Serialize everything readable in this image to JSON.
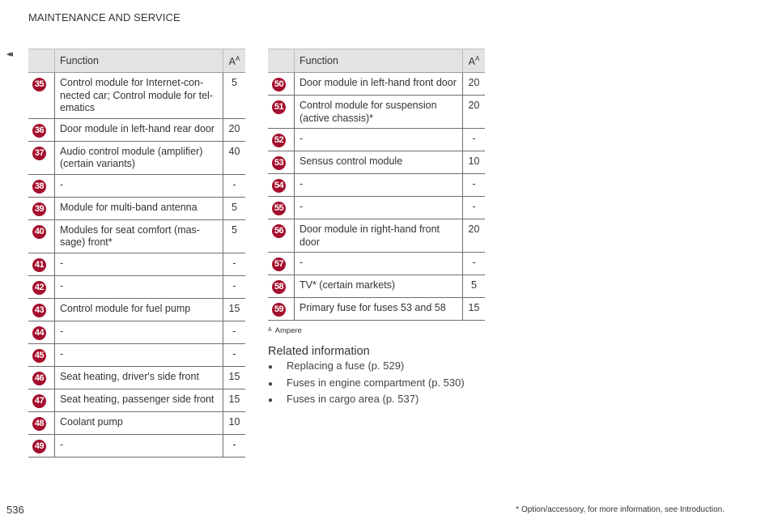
{
  "header": {
    "section": "MAINTENANCE AND SERVICE",
    "back_glyph": "◂◂"
  },
  "table_left": {
    "columns": {
      "function": "Function",
      "amp": "A",
      "amp_sup": "A"
    },
    "rows": [
      {
        "n": "35",
        "function": "Control module for Internet-con-\nnected car; Control module for tel-\nematics",
        "amp": "5"
      },
      {
        "n": "36",
        "function": "Door module in left-hand rear door",
        "amp": "20"
      },
      {
        "n": "37",
        "function": "Audio control module (amplifier)\n(certain variants)",
        "amp": "40"
      },
      {
        "n": "38",
        "function": "-",
        "amp": "-"
      },
      {
        "n": "39",
        "function": "Module for multi-band antenna",
        "amp": "5"
      },
      {
        "n": "40",
        "function": "Modules for seat comfort (mas-\nsage) front*",
        "amp": "5"
      },
      {
        "n": "41",
        "function": "-",
        "amp": "-"
      },
      {
        "n": "42",
        "function": "-",
        "amp": "-"
      },
      {
        "n": "43",
        "function": "Control module for fuel pump",
        "amp": "15"
      },
      {
        "n": "44",
        "function": "-",
        "amp": "-"
      },
      {
        "n": "45",
        "function": "-",
        "amp": "-"
      },
      {
        "n": "46",
        "function": "Seat heating, driver's side front",
        "amp": "15"
      },
      {
        "n": "47",
        "function": "Seat heating, passenger side front",
        "amp": "15"
      },
      {
        "n": "48",
        "function": "Coolant pump",
        "amp": "10"
      },
      {
        "n": "49",
        "function": "-",
        "amp": "-"
      }
    ]
  },
  "table_right": {
    "columns": {
      "function": "Function",
      "amp": "A",
      "amp_sup": "A"
    },
    "rows": [
      {
        "n": "50",
        "function": "Door module in left-hand front door",
        "amp": "20"
      },
      {
        "n": "51",
        "function": "Control module for suspension\n(active chassis)*",
        "amp": "20"
      },
      {
        "n": "52",
        "function": "-",
        "amp": "-"
      },
      {
        "n": "53",
        "function": "Sensus control module",
        "amp": "10"
      },
      {
        "n": "54",
        "function": "-",
        "amp": "-"
      },
      {
        "n": "55",
        "function": "-",
        "amp": "-"
      },
      {
        "n": "56",
        "function": "Door module in right-hand front\ndoor",
        "amp": "20"
      },
      {
        "n": "57",
        "function": "-",
        "amp": "-"
      },
      {
        "n": "58",
        "function": "TV* (certain markets)",
        "amp": "5"
      },
      {
        "n": "59",
        "function": "Primary fuse for fuses 53 and 58",
        "amp": "15"
      }
    ]
  },
  "footnote": {
    "mark": "A",
    "text": "Ampere"
  },
  "related": {
    "title": "Related information",
    "items": [
      "Replacing a fuse (p. 529)",
      "Fuses in engine compartment (p. 530)",
      "Fuses in cargo area (p. 537)"
    ]
  },
  "footer": {
    "page": "536",
    "note": "* Option/accessory, for more information, see Introduction."
  },
  "colors": {
    "badge": "#a50f2d",
    "header_bg": "#e3e3e3"
  }
}
